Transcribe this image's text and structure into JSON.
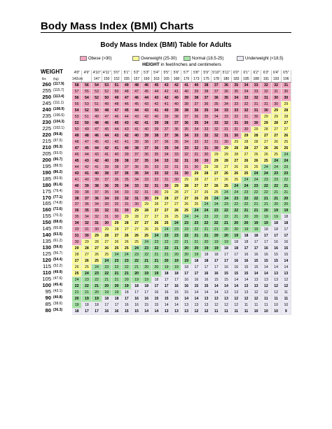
{
  "document": {
    "title": "Body Mass Index (BMI) Charts"
  },
  "chart_data": {
    "type": "table",
    "title": "Body Mass Index (BMI) Table for Adults",
    "axis_header_bold": "HEIGHT",
    "axis_header_rest": "in feet/inches and centimeters",
    "weight_header": "WEIGHT",
    "unit_lbs": "lbs",
    "unit_kg": "(kg)",
    "legend": [
      {
        "label": "Obese (>30)",
        "color": "#f2a7c1"
      },
      {
        "label": "Overweight (25-30)",
        "color": "#ffff9a"
      },
      {
        "label": "Normal (18.5-25)",
        "color": "#a6e3a6"
      },
      {
        "label": "Underweight (<18.5)",
        "color": "#eceaf6"
      }
    ],
    "heights_ft": [
      "4'8\"",
      "4'9\"",
      "4'10\"",
      "4'11\"",
      "5'0\"",
      "5'1\"",
      "5'2\"",
      "5'3\"",
      "5'4\"",
      "5'5\"",
      "5'6\"",
      "5'7\"",
      "5'8\"",
      "5'9\"",
      "5'10\"",
      "5'11\"",
      "6'0\"",
      "6'1\"",
      "6'2\"",
      "6'3\"",
      "6'4\"",
      "6'5\""
    ],
    "heights_cm": [
      "142cm",
      "",
      "147",
      "150",
      "152",
      "155",
      "157",
      "160",
      "163",
      "165",
      "168",
      "170",
      "173",
      "175",
      "178",
      "180",
      "183",
      "185",
      "188",
      "191",
      "193",
      "196"
    ],
    "rows": [
      {
        "lbs": "260",
        "kg": "(117.9)",
        "bmi": [
          58,
          56,
          54,
          53,
          51,
          49,
          48,
          46,
          45,
          43,
          42,
          41,
          40,
          38,
          37,
          36,
          35,
          34,
          33,
          32,
          32,
          31
        ]
      },
      {
        "lbs": "255",
        "kg": "(115.7)",
        "bmi": [
          57,
          55,
          53,
          52,
          50,
          48,
          47,
          45,
          44,
          42,
          41,
          40,
          39,
          38,
          37,
          36,
          35,
          34,
          33,
          32,
          31,
          30
        ]
      },
      {
        "lbs": "250",
        "kg": "(113.4)",
        "bmi": [
          56,
          54,
          52,
          50,
          49,
          47,
          46,
          44,
          43,
          42,
          40,
          39,
          38,
          37,
          36,
          35,
          34,
          33,
          32,
          31,
          30,
          30
        ]
      },
      {
        "lbs": "245",
        "kg": "(111.1)",
        "bmi": [
          55,
          53,
          51,
          49,
          48,
          46,
          45,
          43,
          42,
          41,
          40,
          38,
          37,
          36,
          35,
          34,
          33,
          32,
          31,
          31,
          30,
          29
        ]
      },
      {
        "lbs": "240",
        "kg": "(108.9)",
        "bmi": [
          54,
          52,
          50,
          48,
          47,
          45,
          44,
          43,
          41,
          40,
          39,
          38,
          36,
          35,
          34,
          33,
          33,
          32,
          31,
          30,
          29,
          28
        ]
      },
      {
        "lbs": "235",
        "kg": "(106.6)",
        "bmi": [
          53,
          51,
          49,
          47,
          46,
          44,
          43,
          42,
          40,
          39,
          38,
          37,
          36,
          35,
          34,
          33,
          32,
          31,
          30,
          29,
          29,
          28
        ]
      },
      {
        "lbs": "230",
        "kg": "(104.3)",
        "bmi": [
          52,
          50,
          48,
          46,
          45,
          43,
          42,
          41,
          39,
          38,
          37,
          36,
          35,
          34,
          33,
          32,
          31,
          30,
          30,
          29,
          28,
          27
        ]
      },
      {
        "lbs": "225",
        "kg": "(102.1)",
        "bmi": [
          50,
          49,
          47,
          45,
          44,
          43,
          41,
          40,
          39,
          37,
          36,
          35,
          34,
          33,
          32,
          31,
          31,
          30,
          29,
          28,
          27,
          27
        ]
      },
      {
        "lbs": "220",
        "kg": "(99.8)",
        "bmi": [
          49,
          48,
          46,
          44,
          43,
          42,
          40,
          39,
          38,
          37,
          36,
          34,
          33,
          32,
          32,
          31,
          30,
          29,
          28,
          27,
          27,
          26
        ]
      },
      {
        "lbs": "215",
        "kg": "(97.5)",
        "bmi": [
          48,
          47,
          45,
          43,
          42,
          41,
          39,
          38,
          37,
          36,
          35,
          34,
          33,
          32,
          31,
          30,
          29,
          28,
          28,
          27,
          26,
          25
        ]
      },
      {
        "lbs": "210",
        "kg": "(95.3)",
        "bmi": [
          47,
          45,
          44,
          42,
          41,
          40,
          38,
          37,
          36,
          35,
          34,
          33,
          32,
          31,
          30,
          29,
          28,
          28,
          27,
          26,
          26,
          25
        ]
      },
      {
        "lbs": "205",
        "kg": "(93.0)",
        "bmi": [
          46,
          44,
          43,
          41,
          40,
          39,
          37,
          36,
          35,
          34,
          33,
          32,
          31,
          30,
          29,
          29,
          28,
          27,
          26,
          26,
          25,
          24
        ]
      },
      {
        "lbs": "200",
        "kg": "(90.7)",
        "bmi": [
          45,
          43,
          42,
          40,
          39,
          38,
          37,
          35,
          34,
          33,
          32,
          31,
          30,
          30,
          29,
          28,
          27,
          26,
          26,
          25,
          24,
          24
        ]
      },
      {
        "lbs": "195",
        "kg": "(88.5)",
        "bmi": [
          44,
          42,
          41,
          39,
          38,
          37,
          36,
          35,
          33,
          32,
          31,
          31,
          30,
          29,
          28,
          27,
          26,
          26,
          25,
          24,
          24,
          23
        ]
      },
      {
        "lbs": "190",
        "kg": "(86.2)",
        "bmi": [
          43,
          41,
          40,
          38,
          37,
          36,
          35,
          34,
          33,
          32,
          31,
          30,
          29,
          28,
          27,
          26,
          26,
          25,
          24,
          24,
          23,
          23
        ]
      },
      {
        "lbs": "185",
        "kg": "(83.9)",
        "bmi": [
          41,
          40,
          39,
          37,
          36,
          35,
          34,
          33,
          32,
          31,
          30,
          29,
          28,
          27,
          27,
          26,
          25,
          24,
          24,
          23,
          23,
          22
        ]
      },
      {
        "lbs": "180",
        "kg": "(81.6)",
        "bmi": [
          40,
          39,
          38,
          36,
          35,
          34,
          33,
          32,
          31,
          30,
          29,
          28,
          27,
          27,
          26,
          25,
          24,
          24,
          23,
          22,
          22,
          21
        ]
      },
      {
        "lbs": "175",
        "kg": "(79.4)",
        "bmi": [
          39,
          38,
          37,
          35,
          34,
          33,
          32,
          31,
          30,
          29,
          28,
          27,
          27,
          26,
          25,
          24,
          24,
          23,
          22,
          22,
          21,
          21
        ]
      },
      {
        "lbs": "170",
        "kg": "(77.1)",
        "bmi": [
          38,
          37,
          36,
          34,
          33,
          32,
          31,
          30,
          29,
          28,
          27,
          27,
          26,
          25,
          24,
          24,
          23,
          22,
          22,
          21,
          21,
          20
        ]
      },
      {
        "lbs": "165",
        "kg": "(74.8)",
        "bmi": [
          37,
          36,
          34,
          33,
          32,
          31,
          30,
          29,
          28,
          27,
          27,
          26,
          25,
          24,
          24,
          23,
          22,
          22,
          21,
          21,
          20,
          20
        ]
      },
      {
        "lbs": "160",
        "kg": "(72.6)",
        "bmi": [
          36,
          35,
          33,
          32,
          31,
          30,
          29,
          28,
          27,
          27,
          26,
          25,
          24,
          24,
          23,
          22,
          22,
          21,
          21,
          20,
          19,
          19
        ]
      },
      {
        "lbs": "155",
        "kg": "(70.3)",
        "bmi": [
          35,
          34,
          32,
          31,
          30,
          29,
          28,
          27,
          27,
          26,
          25,
          24,
          24,
          23,
          22,
          22,
          21,
          20,
          20,
          19,
          19,
          18
        ]
      },
      {
        "lbs": "150",
        "kg": "(68.0)",
        "bmi": [
          34,
          32,
          31,
          30,
          29,
          28,
          27,
          27,
          26,
          25,
          24,
          23,
          23,
          22,
          22,
          21,
          20,
          20,
          19,
          19,
          18,
          18
        ]
      },
      {
        "lbs": "145",
        "kg": "(65.8)",
        "bmi": [
          33,
          31,
          30,
          29,
          28,
          27,
          27,
          26,
          25,
          24,
          23,
          23,
          22,
          21,
          21,
          20,
          20,
          19,
          19,
          18,
          18,
          17
        ]
      },
      {
        "lbs": "140",
        "kg": "(63.5)",
        "bmi": [
          31,
          30,
          29,
          28,
          27,
          26,
          26,
          25,
          24,
          23,
          23,
          22,
          21,
          21,
          20,
          20,
          19,
          18,
          18,
          17,
          17,
          17
        ]
      },
      {
        "lbs": "135",
        "kg": "(61.2)",
        "bmi": [
          30,
          29,
          28,
          27,
          26,
          26,
          25,
          24,
          23,
          22,
          22,
          21,
          21,
          20,
          19,
          19,
          18,
          18,
          17,
          17,
          16,
          16
        ]
      },
      {
        "lbs": "130",
        "kg": "(59.0)",
        "bmi": [
          29,
          28,
          27,
          26,
          25,
          25,
          24,
          23,
          22,
          22,
          21,
          20,
          20,
          19,
          19,
          18,
          18,
          17,
          17,
          16,
          16,
          15
        ]
      },
      {
        "lbs": "125",
        "kg": "(56.7)",
        "bmi": [
          28,
          27,
          26,
          25,
          24,
          24,
          23,
          22,
          21,
          21,
          20,
          20,
          19,
          18,
          18,
          17,
          17,
          16,
          16,
          16,
          15,
          15
        ]
      },
      {
        "lbs": "120",
        "kg": "(54.4)",
        "bmi": [
          27,
          26,
          25,
          24,
          23,
          23,
          22,
          21,
          21,
          20,
          19,
          19,
          18,
          18,
          17,
          17,
          16,
          16,
          15,
          15,
          15,
          14
        ]
      },
      {
        "lbs": "115",
        "kg": "(52.2)",
        "bmi": [
          26,
          25,
          24,
          23,
          22,
          22,
          21,
          20,
          20,
          19,
          19,
          18,
          17,
          17,
          17,
          16,
          16,
          15,
          15,
          14,
          14,
          14
        ]
      },
      {
        "lbs": "110",
        "kg": "(49.9)",
        "bmi": [
          25,
          24,
          23,
          22,
          21,
          21,
          20,
          19,
          19,
          18,
          18,
          17,
          17,
          16,
          16,
          15,
          15,
          15,
          14,
          14,
          13,
          13
        ]
      },
      {
        "lbs": "105",
        "kg": "(47.6)",
        "bmi": [
          24,
          23,
          22,
          21,
          21,
          20,
          19,
          19,
          18,
          17,
          17,
          16,
          16,
          16,
          15,
          15,
          14,
          14,
          13,
          13,
          13,
          12
        ]
      },
      {
        "lbs": "100",
        "kg": "(45.4)",
        "bmi": [
          22,
          22,
          21,
          20,
          20,
          19,
          18,
          18,
          17,
          17,
          16,
          16,
          15,
          15,
          14,
          14,
          14,
          13,
          13,
          12,
          12,
          12
        ]
      },
      {
        "lbs": "95",
        "kg": "(43.1)",
        "bmi": [
          21,
          21,
          20,
          19,
          19,
          18,
          17,
          17,
          16,
          16,
          15,
          15,
          14,
          14,
          14,
          13,
          13,
          13,
          12,
          12,
          12,
          11
        ]
      },
      {
        "lbs": "90",
        "kg": "(40.8)",
        "bmi": [
          20,
          19,
          19,
          18,
          18,
          17,
          16,
          16,
          15,
          15,
          15,
          14,
          14,
          13,
          13,
          13,
          12,
          12,
          12,
          11,
          11,
          11
        ]
      },
      {
        "lbs": "85",
        "kg": "(38.6)",
        "bmi": [
          19,
          18,
          18,
          17,
          17,
          16,
          16,
          15,
          15,
          14,
          14,
          13,
          13,
          13,
          12,
          12,
          12,
          11,
          11,
          11,
          10,
          10
        ]
      },
      {
        "lbs": "80",
        "kg": "(36.3)",
        "bmi": [
          18,
          17,
          17,
          16,
          16,
          15,
          15,
          14,
          14,
          13,
          13,
          13,
          12,
          12,
          11,
          11,
          11,
          11,
          10,
          10,
          10,
          9
        ]
      }
    ]
  }
}
